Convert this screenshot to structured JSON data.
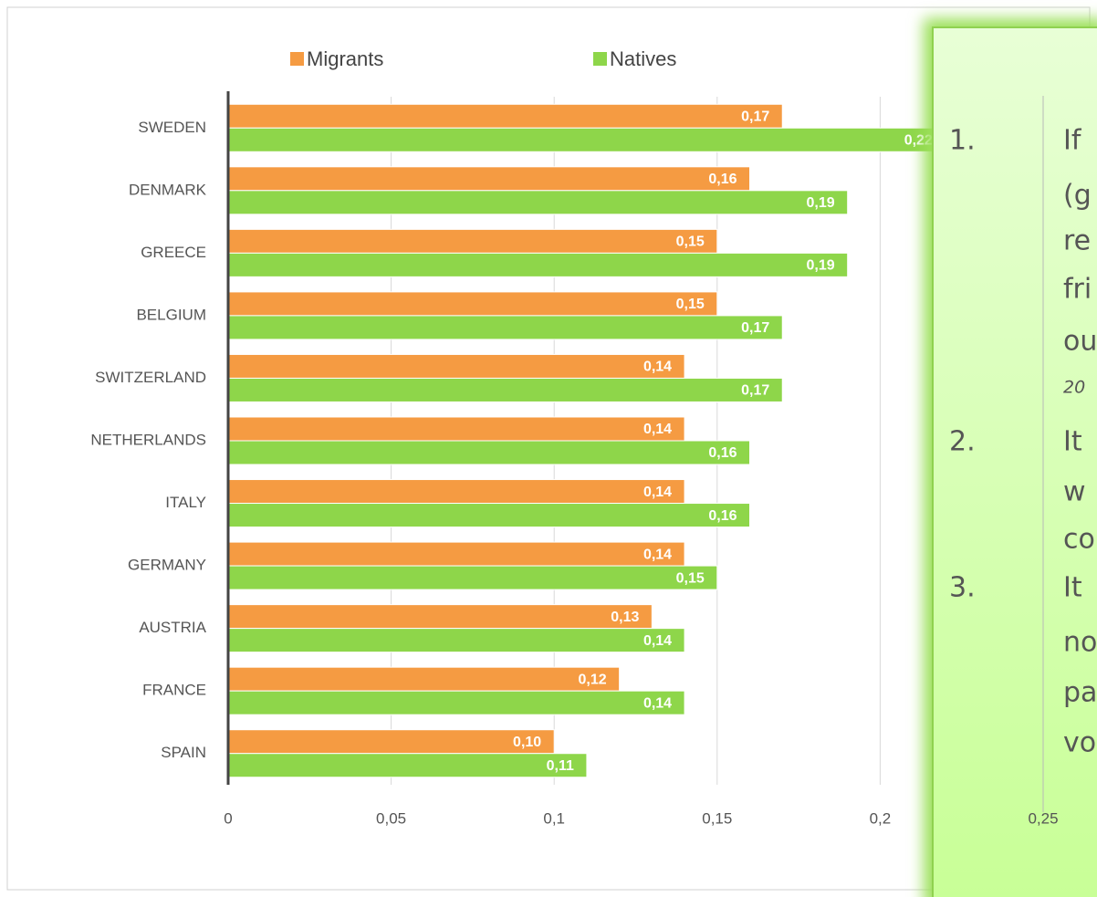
{
  "chart_data": {
    "type": "bar",
    "orientation": "horizontal",
    "categories": [
      "SWEDEN",
      "DENMARK",
      "GREECE",
      "BELGIUM",
      "SWITZERLAND",
      "NETHERLANDS",
      "ITALY",
      "GERMANY",
      "AUSTRIA",
      "FRANCE",
      "SPAIN"
    ],
    "series": [
      {
        "name": "Migrants",
        "color": "#f59b42",
        "values": [
          0.17,
          0.16,
          0.15,
          0.15,
          0.14,
          0.14,
          0.14,
          0.14,
          0.13,
          0.12,
          0.1
        ],
        "value_labels": [
          "0,17",
          "0,16",
          "0,15",
          "0,15",
          "0,14",
          "0,14",
          "0,14",
          "0,14",
          "0,13",
          "0,12",
          "0,10"
        ]
      },
      {
        "name": "Natives",
        "color": "#8ed64a",
        "values": [
          0.22,
          0.19,
          0.19,
          0.17,
          0.17,
          0.16,
          0.16,
          0.15,
          0.14,
          0.14,
          0.11
        ],
        "value_labels": [
          "0,22",
          "0,19",
          "0,19",
          "0,17",
          "0,17",
          "0,16",
          "0,16",
          "0,15",
          "0,14",
          "0,14",
          "0,11"
        ]
      }
    ],
    "xlim": [
      0,
      0.25
    ],
    "xticks": [
      0,
      {
        "value": 0.05,
        "label": "0,05"
      },
      {
        "value": 0.1,
        "label": "0,1"
      },
      {
        "value": 0.15,
        "label": "0,15"
      },
      {
        "value": 0.2,
        "label": "0,2"
      },
      {
        "value": 0.25,
        "label": "0,25"
      }
    ],
    "grid": true,
    "legend": "top"
  },
  "text_box": {
    "items": [
      {
        "number": "1.",
        "lines": [
          "If",
          "(g",
          "re",
          "fri",
          "ou",
          "20"
        ]
      },
      {
        "number": "2.",
        "lines": [
          "It",
          "w",
          "co"
        ]
      },
      {
        "number": "3.",
        "lines": [
          "It",
          "no",
          "pa",
          "vo"
        ]
      }
    ]
  }
}
